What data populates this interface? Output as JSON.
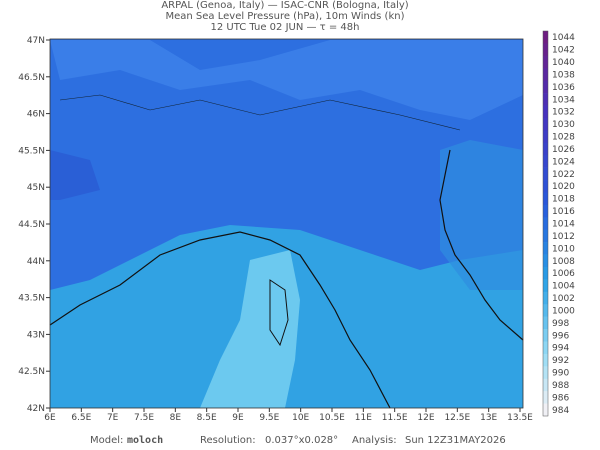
{
  "header": {
    "line1": "ARPAL (Genoa, Italy)  —  ISAC-CNR (Bologna, Italy)",
    "line2": "Mean Sea Level Pressure (hPa), 10m Winds (kn)",
    "line3": "12 UTC Tue 02 JUN  —  τ = 48h"
  },
  "map": {
    "x_labels": [
      "6E",
      "6.5E",
      "7E",
      "7.5E",
      "8E",
      "8.5E",
      "9E",
      "9.5E",
      "10E",
      "10.5E",
      "11E",
      "11.5E",
      "12E",
      "12.5E",
      "13E",
      "13.5E"
    ],
    "y_labels": [
      "47N",
      "46.5N",
      "46N",
      "45.5N",
      "45N",
      "44.5N",
      "44N",
      "43.5N",
      "43N",
      "42.5N",
      "42N"
    ]
  },
  "colorbar": {
    "levels": [
      1044,
      1042,
      1040,
      1038,
      1036,
      1034,
      1032,
      1030,
      1028,
      1026,
      1024,
      1022,
      1020,
      1018,
      1016,
      1014,
      1012,
      1010,
      1008,
      1006,
      1004,
      1002,
      1000,
      998,
      996,
      994,
      992,
      990,
      988,
      986,
      984
    ]
  },
  "footer": {
    "model_label": "Model:",
    "model": "moloch",
    "resolution_label": "Resolution:",
    "resolution": "0.037°x0.028°",
    "analysis_label": "Analysis:",
    "analysis": "Sun 12Z31MAY2026"
  }
}
